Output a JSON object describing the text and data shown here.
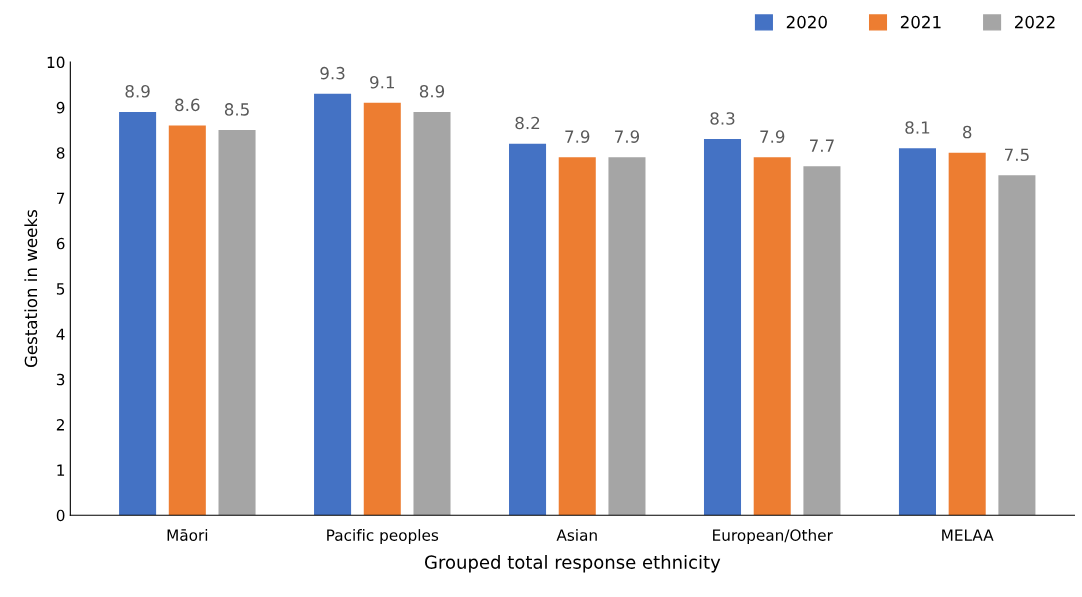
{
  "chart_data": {
    "type": "bar",
    "xlabel": "Grouped total response ethnicity",
    "ylabel": "Gestation in weeks",
    "categories": [
      "Māori",
      "Pacific peoples",
      "Asian",
      "European/Other",
      "MELAA"
    ],
    "series": [
      {
        "name": "2020",
        "color": "#4472c4",
        "values": [
          8.9,
          9.3,
          8.2,
          8.3,
          8.1
        ]
      },
      {
        "name": "2021",
        "color": "#ed7d31",
        "values": [
          8.6,
          9.1,
          7.9,
          7.9,
          8
        ]
      },
      {
        "name": "2022",
        "color": "#a5a5a5",
        "values": [
          8.5,
          8.9,
          7.9,
          7.7,
          7.5
        ]
      }
    ],
    "ylim": [
      0,
      10
    ],
    "yticks": [
      0,
      1,
      2,
      3,
      4,
      5,
      6,
      7,
      8,
      9,
      10
    ],
    "data_labels": true,
    "legend": "top right",
    "grid": false
  }
}
